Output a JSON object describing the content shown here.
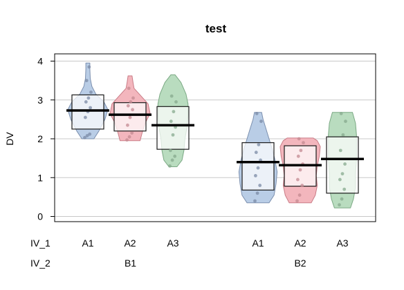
{
  "chart_data": {
    "type": "violin",
    "title": "test",
    "xlabel": "",
    "ylabel": "DV",
    "ylim": [
      -0.15,
      4.15
    ],
    "yticks": [
      0,
      1,
      2,
      3,
      4
    ],
    "grid": true,
    "factor_labels": {
      "iv1": "IV_1",
      "iv2": "IV_2"
    },
    "groups": [
      "B1",
      "B2"
    ],
    "categories": [
      "A1",
      "A2",
      "A3"
    ],
    "colors": {
      "A1": "#b9cde6",
      "A2": "#f3b6bd",
      "A3": "#b9dcbf"
    },
    "series": [
      {
        "iv1": "A1",
        "iv2": "B1",
        "mean": 2.73,
        "ci": [
          2.25,
          3.13
        ],
        "range": [
          2.0,
          3.95
        ],
        "points": [
          2.03,
          2.08,
          2.12,
          2.55,
          2.7,
          2.8,
          2.95,
          3.05,
          3.2,
          3.5,
          3.85
        ],
        "density": [
          [
            2.0,
            0.3
          ],
          [
            2.2,
            0.55
          ],
          [
            2.5,
            0.85
          ],
          [
            2.75,
            1.0
          ],
          [
            2.95,
            0.8
          ],
          [
            3.15,
            0.4
          ],
          [
            3.35,
            0.2
          ],
          [
            3.55,
            0.12
          ],
          [
            3.8,
            0.1
          ],
          [
            3.95,
            0.1
          ]
        ]
      },
      {
        "iv1": "A2",
        "iv2": "B1",
        "mean": 2.62,
        "ci": [
          2.2,
          2.93
        ],
        "range": [
          1.95,
          3.62
        ],
        "points": [
          1.97,
          2.05,
          2.15,
          2.35,
          2.55,
          2.75,
          2.85,
          2.95,
          3.05,
          3.3
        ],
        "density": [
          [
            1.95,
            0.5
          ],
          [
            2.15,
            0.6
          ],
          [
            2.4,
            0.75
          ],
          [
            2.65,
            1.0
          ],
          [
            2.9,
            0.9
          ],
          [
            3.1,
            0.55
          ],
          [
            3.3,
            0.2
          ],
          [
            3.45,
            0.15
          ],
          [
            3.62,
            0.1
          ]
        ]
      },
      {
        "iv1": "A3",
        "iv2": "B1",
        "mean": 2.35,
        "ci": [
          1.73,
          2.83
        ],
        "range": [
          1.28,
          3.65
        ],
        "points": [
          1.3,
          1.45,
          1.55,
          1.7,
          2.1,
          2.3,
          2.45,
          2.7,
          2.95,
          3.1
        ],
        "density": [
          [
            1.28,
            0.2
          ],
          [
            1.45,
            0.45
          ],
          [
            1.7,
            0.55
          ],
          [
            2.0,
            0.6
          ],
          [
            2.3,
            0.7
          ],
          [
            2.6,
            0.75
          ],
          [
            2.9,
            0.75
          ],
          [
            3.15,
            0.65
          ],
          [
            3.45,
            0.4
          ],
          [
            3.65,
            0.1
          ]
        ]
      },
      {
        "iv1": "A1",
        "iv2": "B2",
        "mean": 1.4,
        "ci": [
          0.68,
          1.9
        ],
        "range": [
          0.35,
          2.68
        ],
        "points": [
          0.4,
          0.6,
          0.8,
          1.05,
          1.25,
          1.45,
          1.65,
          1.85,
          2.45,
          2.65
        ],
        "density": [
          [
            0.35,
            0.55
          ],
          [
            0.55,
            0.8
          ],
          [
            0.85,
            0.9
          ],
          [
            1.15,
            0.95
          ],
          [
            1.45,
            0.85
          ],
          [
            1.75,
            0.7
          ],
          [
            2.0,
            0.55
          ],
          [
            2.25,
            0.4
          ],
          [
            2.5,
            0.25
          ],
          [
            2.68,
            0.18
          ]
        ]
      },
      {
        "iv1": "A2",
        "iv2": "B2",
        "mean": 1.32,
        "ci": [
          0.78,
          1.82
        ],
        "range": [
          0.35,
          2.02
        ],
        "points": [
          0.4,
          0.55,
          0.8,
          0.95,
          1.2,
          1.35,
          1.55,
          1.7,
          1.9,
          2.0
        ],
        "density": [
          [
            0.35,
            0.55
          ],
          [
            0.55,
            0.75
          ],
          [
            0.8,
            0.85
          ],
          [
            1.05,
            0.8
          ],
          [
            1.3,
            0.85
          ],
          [
            1.55,
            0.95
          ],
          [
            1.8,
            1.0
          ],
          [
            1.95,
            0.85
          ],
          [
            2.02,
            0.65
          ]
        ]
      },
      {
        "iv1": "A3",
        "iv2": "B2",
        "mean": 1.48,
        "ci": [
          0.6,
          2.05
        ],
        "range": [
          0.22,
          2.68
        ],
        "points": [
          0.3,
          0.45,
          0.7,
          0.95,
          1.1,
          1.35,
          1.7,
          2.1,
          2.45,
          2.65
        ],
        "density": [
          [
            0.22,
            0.4
          ],
          [
            0.45,
            0.55
          ],
          [
            0.75,
            0.65
          ],
          [
            1.1,
            0.65
          ],
          [
            1.45,
            0.7
          ],
          [
            1.8,
            0.7
          ],
          [
            2.1,
            0.7
          ],
          [
            2.4,
            0.65
          ],
          [
            2.68,
            0.5
          ]
        ]
      }
    ]
  }
}
